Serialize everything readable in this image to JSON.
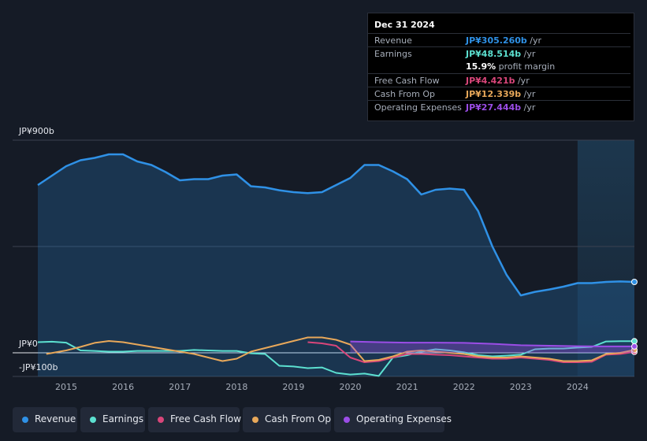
{
  "tooltip": {
    "date": "Dec 31 2024",
    "rows": [
      {
        "label": "Revenue",
        "value": "JP¥305.260b",
        "unit": " /yr",
        "color": "#2f91e6"
      },
      {
        "label": "Earnings",
        "value": "JP¥48.514b",
        "unit": " /yr",
        "color": "#5ce0d0"
      },
      {
        "label": "",
        "value": "15.9%",
        "unit": " profit margin",
        "color": "#ffffff"
      },
      {
        "label": "Free Cash Flow",
        "value": "JP¥4.421b",
        "unit": " /yr",
        "color": "#d9467a"
      },
      {
        "label": "Cash From Op",
        "value": "JP¥12.339b",
        "unit": " /yr",
        "color": "#e8a85a"
      },
      {
        "label": "Operating Expenses",
        "value": "JP¥27.444b",
        "unit": " /yr",
        "color": "#9b4de6"
      }
    ]
  },
  "chart_data": {
    "type": "line",
    "y_tick_labels": [
      "JP¥900b",
      "JP¥0",
      "-JP¥100b"
    ],
    "ylim": [
      -100,
      900
    ],
    "xlim": [
      2014.5,
      2025.0
    ],
    "x_tick_labels": [
      "2015",
      "2016",
      "2017",
      "2018",
      "2019",
      "2020",
      "2021",
      "2022",
      "2023",
      "2024"
    ],
    "x_ticks": [
      2015,
      2016,
      2017,
      2018,
      2019,
      2020,
      2021,
      2022,
      2023,
      2024
    ],
    "highlight_from": 2024.0,
    "series": [
      {
        "name": "Revenue",
        "color": "#2f91e6",
        "fill": true,
        "points": [
          [
            2014.5,
            710
          ],
          [
            2014.75,
            750
          ],
          [
            2015.0,
            790
          ],
          [
            2015.25,
            815
          ],
          [
            2015.5,
            825
          ],
          [
            2015.75,
            840
          ],
          [
            2016.0,
            840
          ],
          [
            2016.25,
            810
          ],
          [
            2016.5,
            795
          ],
          [
            2016.75,
            765
          ],
          [
            2017.0,
            730
          ],
          [
            2017.25,
            735
          ],
          [
            2017.5,
            735
          ],
          [
            2017.75,
            750
          ],
          [
            2018.0,
            755
          ],
          [
            2018.25,
            705
          ],
          [
            2018.5,
            700
          ],
          [
            2018.75,
            688
          ],
          [
            2019.0,
            680
          ],
          [
            2019.25,
            676
          ],
          [
            2019.5,
            680
          ],
          [
            2019.75,
            710
          ],
          [
            2020.0,
            740
          ],
          [
            2020.25,
            795
          ],
          [
            2020.5,
            795
          ],
          [
            2020.75,
            768
          ],
          [
            2021.0,
            735
          ],
          [
            2021.25,
            670
          ],
          [
            2021.5,
            690
          ],
          [
            2021.75,
            695
          ],
          [
            2022.0,
            690
          ],
          [
            2022.25,
            600
          ],
          [
            2022.5,
            450
          ],
          [
            2022.75,
            330
          ],
          [
            2023.0,
            243
          ],
          [
            2023.25,
            258
          ],
          [
            2023.5,
            268
          ],
          [
            2023.75,
            280
          ],
          [
            2024.0,
            295
          ],
          [
            2024.25,
            295
          ],
          [
            2024.5,
            300
          ],
          [
            2024.75,
            302
          ],
          [
            2025.0,
            300
          ]
        ]
      },
      {
        "name": "Earnings",
        "color": "#5ce0d0",
        "fill": false,
        "points": [
          [
            2014.5,
            45
          ],
          [
            2014.75,
            47
          ],
          [
            2015.0,
            43
          ],
          [
            2015.25,
            10
          ],
          [
            2015.5,
            8
          ],
          [
            2015.75,
            5
          ],
          [
            2016.0,
            5
          ],
          [
            2016.25,
            8
          ],
          [
            2016.5,
            8
          ],
          [
            2016.75,
            8
          ],
          [
            2017.0,
            8
          ],
          [
            2017.25,
            12
          ],
          [
            2017.5,
            10
          ],
          [
            2017.75,
            8
          ],
          [
            2018.0,
            8
          ],
          [
            2018.25,
            -2
          ],
          [
            2018.5,
            -5
          ],
          [
            2018.75,
            -55
          ],
          [
            2019.0,
            -58
          ],
          [
            2019.25,
            -65
          ],
          [
            2019.5,
            -62
          ],
          [
            2019.75,
            -85
          ],
          [
            2020.0,
            -92
          ],
          [
            2020.25,
            -88
          ],
          [
            2020.5,
            -98
          ],
          [
            2020.75,
            -20
          ],
          [
            2021.0,
            -10
          ],
          [
            2021.25,
            5
          ],
          [
            2021.5,
            15
          ],
          [
            2021.75,
            10
          ],
          [
            2022.0,
            2
          ],
          [
            2022.25,
            -10
          ],
          [
            2022.5,
            -15
          ],
          [
            2022.75,
            -12
          ],
          [
            2023.0,
            -8
          ],
          [
            2023.25,
            15
          ],
          [
            2023.5,
            18
          ],
          [
            2023.75,
            18
          ],
          [
            2024.0,
            22
          ],
          [
            2024.25,
            25
          ],
          [
            2024.5,
            48
          ],
          [
            2024.75,
            49
          ],
          [
            2025.0,
            49
          ]
        ]
      },
      {
        "name": "Free Cash Flow",
        "color": "#d9467a",
        "fill": false,
        "points": [
          [
            2019.25,
            45
          ],
          [
            2019.5,
            40
          ],
          [
            2019.75,
            30
          ],
          [
            2020.0,
            -20
          ],
          [
            2020.25,
            -40
          ],
          [
            2020.5,
            -35
          ],
          [
            2020.75,
            -20
          ],
          [
            2021.0,
            -5
          ],
          [
            2021.25,
            -5
          ],
          [
            2021.5,
            -8
          ],
          [
            2021.75,
            -10
          ],
          [
            2022.0,
            -15
          ],
          [
            2022.25,
            -20
          ],
          [
            2022.5,
            -25
          ],
          [
            2022.75,
            -25
          ],
          [
            2023.0,
            -20
          ],
          [
            2023.25,
            -25
          ],
          [
            2023.5,
            -30
          ],
          [
            2023.75,
            -40
          ],
          [
            2024.0,
            -40
          ],
          [
            2024.25,
            -38
          ],
          [
            2024.5,
            -8
          ],
          [
            2024.75,
            -5
          ],
          [
            2025.0,
            4
          ]
        ]
      },
      {
        "name": "Cash From Op",
        "color": "#e8a85a",
        "fill": false,
        "points": [
          [
            2014.65,
            -5
          ],
          [
            2015.0,
            10
          ],
          [
            2015.25,
            25
          ],
          [
            2015.5,
            42
          ],
          [
            2015.75,
            50
          ],
          [
            2016.0,
            45
          ],
          [
            2016.25,
            35
          ],
          [
            2016.5,
            25
          ],
          [
            2016.75,
            15
          ],
          [
            2017.0,
            5
          ],
          [
            2017.25,
            -5
          ],
          [
            2017.5,
            -20
          ],
          [
            2017.75,
            -35
          ],
          [
            2018.0,
            -25
          ],
          [
            2018.25,
            5
          ],
          [
            2018.5,
            20
          ],
          [
            2018.75,
            35
          ],
          [
            2019.0,
            50
          ],
          [
            2019.25,
            65
          ],
          [
            2019.5,
            65
          ],
          [
            2019.75,
            55
          ],
          [
            2020.0,
            35
          ],
          [
            2020.25,
            -35
          ],
          [
            2020.5,
            -30
          ],
          [
            2020.75,
            -15
          ],
          [
            2021.0,
            5
          ],
          [
            2021.25,
            10
          ],
          [
            2021.5,
            5
          ],
          [
            2021.75,
            0
          ],
          [
            2022.0,
            -5
          ],
          [
            2022.25,
            -15
          ],
          [
            2022.5,
            -20
          ],
          [
            2022.75,
            -20
          ],
          [
            2023.0,
            -15
          ],
          [
            2023.25,
            -20
          ],
          [
            2023.5,
            -25
          ],
          [
            2023.75,
            -35
          ],
          [
            2024.0,
            -35
          ],
          [
            2024.25,
            -32
          ],
          [
            2024.5,
            -5
          ],
          [
            2024.75,
            0
          ],
          [
            2025.0,
            12
          ]
        ]
      },
      {
        "name": "Operating Expenses",
        "color": "#9b4de6",
        "fill": true,
        "points": [
          [
            2020.0,
            48
          ],
          [
            2020.5,
            45
          ],
          [
            2021.0,
            43
          ],
          [
            2021.5,
            43
          ],
          [
            2022.0,
            42
          ],
          [
            2022.5,
            38
          ],
          [
            2023.0,
            32
          ],
          [
            2023.5,
            30
          ],
          [
            2024.0,
            28
          ],
          [
            2024.5,
            27
          ],
          [
            2025.0,
            27
          ]
        ]
      }
    ]
  },
  "legend": [
    {
      "label": "Revenue",
      "color": "#2f91e6"
    },
    {
      "label": "Earnings",
      "color": "#5ce0d0"
    },
    {
      "label": "Free Cash Flow",
      "color": "#d9467a"
    },
    {
      "label": "Cash From Op",
      "color": "#e8a85a"
    },
    {
      "label": "Operating Expenses",
      "color": "#9b4de6"
    }
  ]
}
